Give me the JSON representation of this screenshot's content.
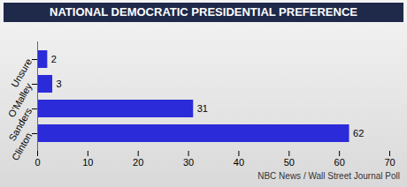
{
  "chart_data": {
    "type": "bar",
    "title": "NATIONAL DEMOCRATIC PRESIDENTIAL PREFERENCE",
    "caption": "NBC News / Wall Street Journal Poll",
    "orientation": "horizontal",
    "categories": [
      "Unsure",
      "O'Malley",
      "Sanders",
      "Clinton"
    ],
    "values": [
      2,
      3,
      31,
      62
    ],
    "color": "#2b2bd9",
    "xlim": [
      0,
      70
    ],
    "xticks": [
      0,
      10,
      20,
      30,
      40,
      50,
      60,
      70
    ],
    "grid": false,
    "data_labels": true
  }
}
